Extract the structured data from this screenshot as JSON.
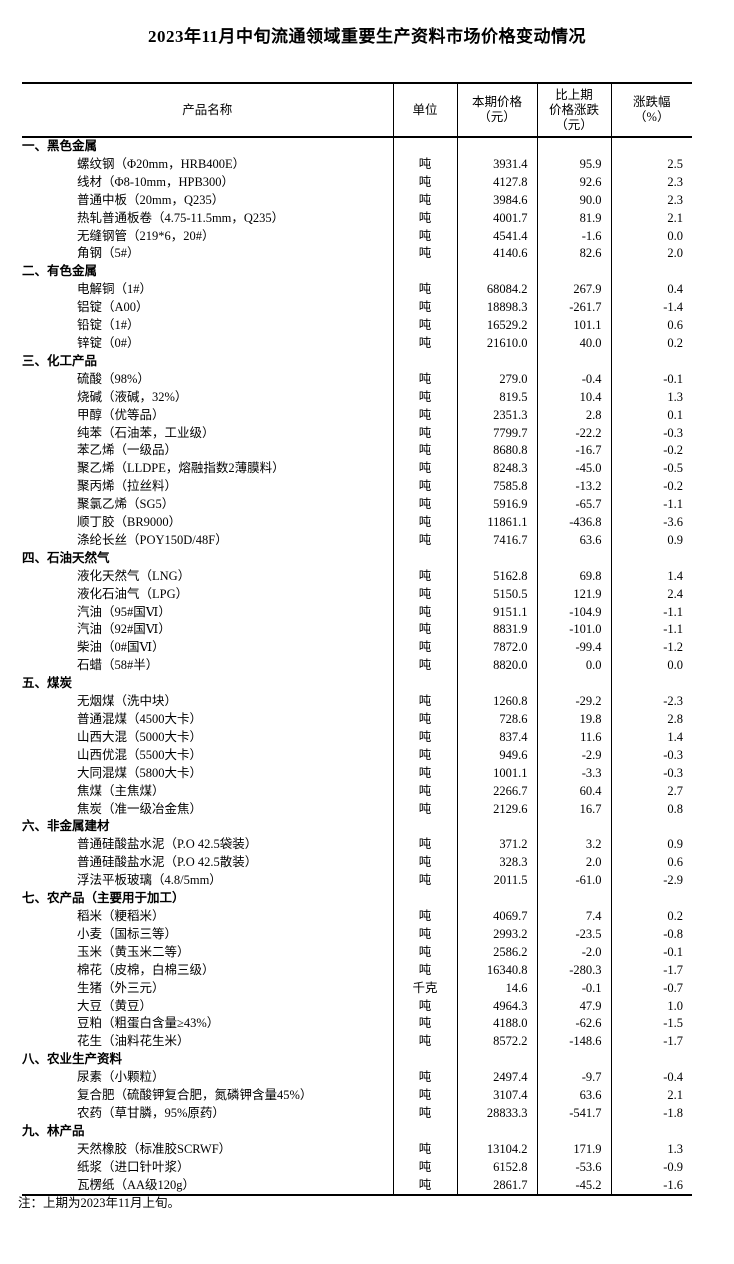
{
  "title": "2023年11月中旬流通领域重要生产资料市场价格变动情况",
  "note": "注：上期为2023年11月上旬。",
  "table": {
    "headers": {
      "product": "产品名称",
      "unit": "单位",
      "price": "本期价格\n（元）",
      "change": "比上期\n价格涨跌\n（元）",
      "pct": "涨跌幅\n（%）"
    },
    "sections": [
      {
        "name": "一、黑色金属",
        "items": [
          {
            "name": "螺纹钢（Φ20mm，HRB400E）",
            "unit": "吨",
            "price": "3931.4",
            "change": "95.9",
            "pct": "2.5"
          },
          {
            "name": "线材（Φ8-10mm，HPB300）",
            "unit": "吨",
            "price": "4127.8",
            "change": "92.6",
            "pct": "2.3"
          },
          {
            "name": "普通中板（20mm，Q235）",
            "unit": "吨",
            "price": "3984.6",
            "change": "90.0",
            "pct": "2.3"
          },
          {
            "name": "热轧普通板卷（4.75-11.5mm，Q235）",
            "unit": "吨",
            "price": "4001.7",
            "change": "81.9",
            "pct": "2.1"
          },
          {
            "name": "无缝钢管（219*6，20#）",
            "unit": "吨",
            "price": "4541.4",
            "change": "-1.6",
            "pct": "0.0"
          },
          {
            "name": "角钢（5#）",
            "unit": "吨",
            "price": "4140.6",
            "change": "82.6",
            "pct": "2.0"
          }
        ]
      },
      {
        "name": "二、有色金属",
        "items": [
          {
            "name": "电解铜（1#）",
            "unit": "吨",
            "price": "68084.2",
            "change": "267.9",
            "pct": "0.4"
          },
          {
            "name": "铝锭（A00）",
            "unit": "吨",
            "price": "18898.3",
            "change": "-261.7",
            "pct": "-1.4"
          },
          {
            "name": "铅锭（1#）",
            "unit": "吨",
            "price": "16529.2",
            "change": "101.1",
            "pct": "0.6"
          },
          {
            "name": "锌锭（0#）",
            "unit": "吨",
            "price": "21610.0",
            "change": "40.0",
            "pct": "0.2"
          }
        ]
      },
      {
        "name": "三、化工产品",
        "items": [
          {
            "name": "硫酸（98%）",
            "unit": "吨",
            "price": "279.0",
            "change": "-0.4",
            "pct": "-0.1"
          },
          {
            "name": "烧碱（液碱，32%）",
            "unit": "吨",
            "price": "819.5",
            "change": "10.4",
            "pct": "1.3"
          },
          {
            "name": "甲醇（优等品）",
            "unit": "吨",
            "price": "2351.3",
            "change": "2.8",
            "pct": "0.1"
          },
          {
            "name": "纯苯（石油苯，工业级）",
            "unit": "吨",
            "price": "7799.7",
            "change": "-22.2",
            "pct": "-0.3"
          },
          {
            "name": "苯乙烯（一级品）",
            "unit": "吨",
            "price": "8680.8",
            "change": "-16.7",
            "pct": "-0.2"
          },
          {
            "name": "聚乙烯（LLDPE，熔融指数2薄膜料）",
            "unit": "吨",
            "price": "8248.3",
            "change": "-45.0",
            "pct": "-0.5"
          },
          {
            "name": "聚丙烯（拉丝料）",
            "unit": "吨",
            "price": "7585.8",
            "change": "-13.2",
            "pct": "-0.2"
          },
          {
            "name": "聚氯乙烯（SG5）",
            "unit": "吨",
            "price": "5916.9",
            "change": "-65.7",
            "pct": "-1.1"
          },
          {
            "name": "顺丁胶（BR9000）",
            "unit": "吨",
            "price": "11861.1",
            "change": "-436.8",
            "pct": "-3.6"
          },
          {
            "name": "涤纶长丝（POY150D/48F）",
            "unit": "吨",
            "price": "7416.7",
            "change": "63.6",
            "pct": "0.9"
          }
        ]
      },
      {
        "name": "四、石油天然气",
        "items": [
          {
            "name": "液化天然气（LNG）",
            "unit": "吨",
            "price": "5162.8",
            "change": "69.8",
            "pct": "1.4"
          },
          {
            "name": "液化石油气（LPG）",
            "unit": "吨",
            "price": "5150.5",
            "change": "121.9",
            "pct": "2.4"
          },
          {
            "name": "汽油（95#国Ⅵ）",
            "unit": "吨",
            "price": "9151.1",
            "change": "-104.9",
            "pct": "-1.1"
          },
          {
            "name": "汽油（92#国Ⅵ）",
            "unit": "吨",
            "price": "8831.9",
            "change": "-101.0",
            "pct": "-1.1"
          },
          {
            "name": "柴油（0#国Ⅵ）",
            "unit": "吨",
            "price": "7872.0",
            "change": "-99.4",
            "pct": "-1.2"
          },
          {
            "name": "石蜡（58#半）",
            "unit": "吨",
            "price": "8820.0",
            "change": "0.0",
            "pct": "0.0"
          }
        ]
      },
      {
        "name": "五、煤炭",
        "items": [
          {
            "name": "无烟煤（洗中块）",
            "unit": "吨",
            "price": "1260.8",
            "change": "-29.2",
            "pct": "-2.3"
          },
          {
            "name": "普通混煤（4500大卡）",
            "unit": "吨",
            "price": "728.6",
            "change": "19.8",
            "pct": "2.8"
          },
          {
            "name": "山西大混（5000大卡）",
            "unit": "吨",
            "price": "837.4",
            "change": "11.6",
            "pct": "1.4"
          },
          {
            "name": "山西优混（5500大卡）",
            "unit": "吨",
            "price": "949.6",
            "change": "-2.9",
            "pct": "-0.3"
          },
          {
            "name": "大同混煤（5800大卡）",
            "unit": "吨",
            "price": "1001.1",
            "change": "-3.3",
            "pct": "-0.3"
          },
          {
            "name": "焦煤（主焦煤）",
            "unit": "吨",
            "price": "2266.7",
            "change": "60.4",
            "pct": "2.7"
          },
          {
            "name": "焦炭（准一级冶金焦）",
            "unit": "吨",
            "price": "2129.6",
            "change": "16.7",
            "pct": "0.8"
          }
        ]
      },
      {
        "name": "六、非金属建材",
        "items": [
          {
            "name": "普通硅酸盐水泥（P.O 42.5袋装）",
            "unit": "吨",
            "price": "371.2",
            "change": "3.2",
            "pct": "0.9"
          },
          {
            "name": "普通硅酸盐水泥（P.O 42.5散装）",
            "unit": "吨",
            "price": "328.3",
            "change": "2.0",
            "pct": "0.6"
          },
          {
            "name": "浮法平板玻璃（4.8/5mm）",
            "unit": "吨",
            "price": "2011.5",
            "change": "-61.0",
            "pct": "-2.9"
          }
        ]
      },
      {
        "name": "七、农产品（主要用于加工）",
        "items": [
          {
            "name": "稻米（粳稻米）",
            "unit": "吨",
            "price": "4069.7",
            "change": "7.4",
            "pct": "0.2"
          },
          {
            "name": "小麦（国标三等）",
            "unit": "吨",
            "price": "2993.2",
            "change": "-23.5",
            "pct": "-0.8"
          },
          {
            "name": "玉米（黄玉米二等）",
            "unit": "吨",
            "price": "2586.2",
            "change": "-2.0",
            "pct": "-0.1"
          },
          {
            "name": "棉花（皮棉，白棉三级）",
            "unit": "吨",
            "price": "16340.8",
            "change": "-280.3",
            "pct": "-1.7"
          },
          {
            "name": "生猪（外三元）",
            "unit": "千克",
            "price": "14.6",
            "change": "-0.1",
            "pct": "-0.7"
          },
          {
            "name": "大豆（黄豆）",
            "unit": "吨",
            "price": "4964.3",
            "change": "47.9",
            "pct": "1.0"
          },
          {
            "name": "豆粕（粗蛋白含量≥43%）",
            "unit": "吨",
            "price": "4188.0",
            "change": "-62.6",
            "pct": "-1.5"
          },
          {
            "name": "花生（油料花生米）",
            "unit": "吨",
            "price": "8572.2",
            "change": "-148.6",
            "pct": "-1.7"
          }
        ]
      },
      {
        "name": "八、农业生产资料",
        "items": [
          {
            "name": "尿素（小颗粒）",
            "unit": "吨",
            "price": "2497.4",
            "change": "-9.7",
            "pct": "-0.4"
          },
          {
            "name": "复合肥（硫酸钾复合肥，氮磷钾含量45%）",
            "unit": "吨",
            "price": "3107.4",
            "change": "63.6",
            "pct": "2.1"
          },
          {
            "name": "农药（草甘膦，95%原药）",
            "unit": "吨",
            "price": "28833.3",
            "change": "-541.7",
            "pct": "-1.8"
          }
        ]
      },
      {
        "name": "九、林产品",
        "items": [
          {
            "name": "天然橡胶（标准胶SCRWF）",
            "unit": "吨",
            "price": "13104.2",
            "change": "171.9",
            "pct": "1.3"
          },
          {
            "name": "纸浆（进口针叶浆）",
            "unit": "吨",
            "price": "6152.8",
            "change": "-53.6",
            "pct": "-0.9"
          },
          {
            "name": "瓦楞纸（AA级120g）",
            "unit": "吨",
            "price": "2861.7",
            "change": "-45.2",
            "pct": "-1.6"
          }
        ]
      }
    ]
  }
}
